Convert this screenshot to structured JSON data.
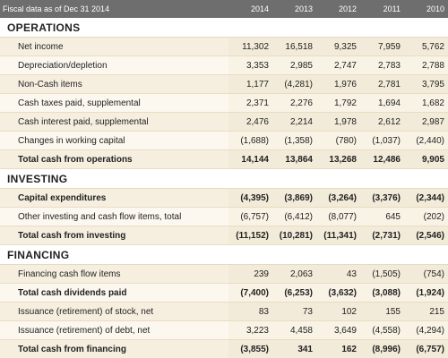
{
  "header": {
    "label": "Fiscal data as of Dec 31 2014",
    "years": [
      "2014",
      "2013",
      "2012",
      "2011",
      "2010"
    ]
  },
  "sections": [
    {
      "title": "OPERATIONS",
      "rows": [
        {
          "label": "Net income",
          "values": [
            "11,302",
            "16,518",
            "9,325",
            "7,959",
            "5,762"
          ],
          "bold": false
        },
        {
          "label": "Depreciation/depletion",
          "values": [
            "3,353",
            "2,985",
            "2,747",
            "2,783",
            "2,788"
          ],
          "bold": false
        },
        {
          "label": "Non-Cash items",
          "values": [
            "1,177",
            "(4,281)",
            "1,976",
            "2,781",
            "3,795"
          ],
          "bold": false
        },
        {
          "label": "Cash taxes paid, supplemental",
          "values": [
            "2,371",
            "2,276",
            "1,792",
            "1,694",
            "1,682"
          ],
          "bold": false
        },
        {
          "label": "Cash interest paid, supplemental",
          "values": [
            "2,476",
            "2,214",
            "1,978",
            "2,612",
            "2,987"
          ],
          "bold": false
        },
        {
          "label": "Changes in working capital",
          "values": [
            "(1,688)",
            "(1,358)",
            "(780)",
            "(1,037)",
            "(2,440)"
          ],
          "bold": false
        },
        {
          "label": "Total cash from operations",
          "values": [
            "14,144",
            "13,864",
            "13,268",
            "12,486",
            "9,905"
          ],
          "bold": true
        }
      ]
    },
    {
      "title": "INVESTING",
      "rows": [
        {
          "label": "Capital expenditures",
          "values": [
            "(4,395)",
            "(3,869)",
            "(3,264)",
            "(3,376)",
            "(2,344)"
          ],
          "bold": true
        },
        {
          "label": "Other investing and cash flow items, total",
          "values": [
            "(6,757)",
            "(6,412)",
            "(8,077)",
            "645",
            "(202)"
          ],
          "bold": false
        },
        {
          "label": "Total cash from investing",
          "values": [
            "(11,152)",
            "(10,281)",
            "(11,341)",
            "(2,731)",
            "(2,546)"
          ],
          "bold": true
        }
      ]
    },
    {
      "title": "FINANCING",
      "rows": [
        {
          "label": "Financing cash flow items",
          "values": [
            "239",
            "2,063",
            "43",
            "(1,505)",
            "(754)"
          ],
          "bold": false
        },
        {
          "label": "Total cash dividends paid",
          "values": [
            "(7,400)",
            "(6,253)",
            "(3,632)",
            "(3,088)",
            "(1,924)"
          ],
          "bold": true
        },
        {
          "label": "Issuance (retirement) of stock, net",
          "values": [
            "83",
            "73",
            "102",
            "155",
            "215"
          ],
          "bold": false
        },
        {
          "label": "Issuance (retirement) of debt, net",
          "values": [
            "3,223",
            "4,458",
            "3,649",
            "(4,558)",
            "(4,294)"
          ],
          "bold": false
        },
        {
          "label": "Total cash from financing",
          "values": [
            "(3,855)",
            "341",
            "162",
            "(8,996)",
            "(6,757)"
          ],
          "bold": true
        }
      ]
    }
  ]
}
